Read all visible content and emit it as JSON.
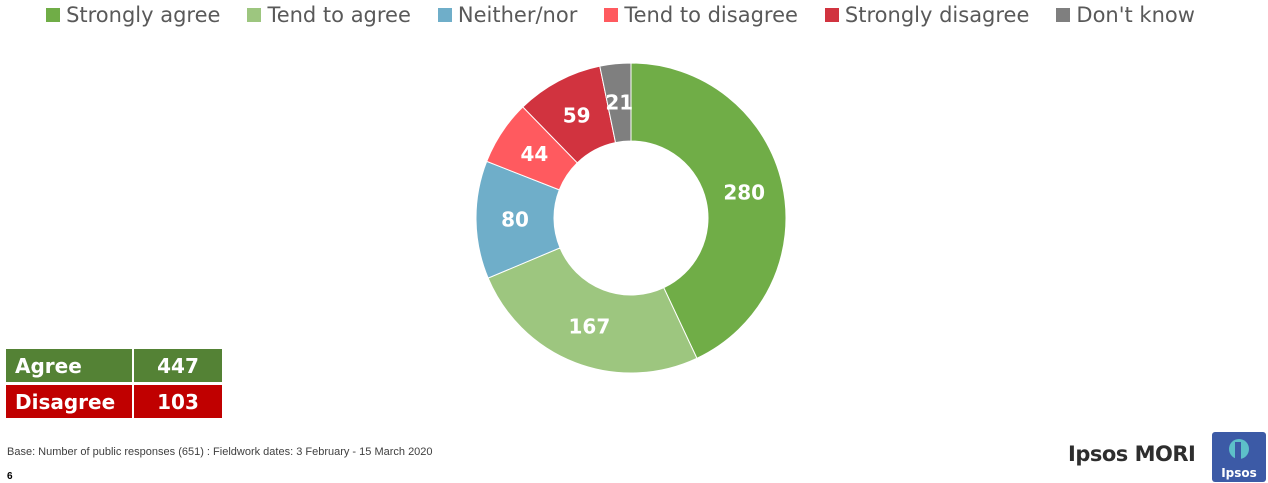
{
  "chart_data": {
    "type": "pie",
    "legend_position": "top",
    "series": [
      {
        "name": "Strongly agree",
        "value": 280,
        "color": "#70ad47"
      },
      {
        "name": "Tend to agree",
        "value": 167,
        "color": "#9dc67f"
      },
      {
        "name": "Neither/nor",
        "value": 80,
        "color": "#6faec9"
      },
      {
        "name": "Tend to disagree",
        "value": 44,
        "color": "#ff5a5f"
      },
      {
        "name": "Strongly disagree",
        "value": 59,
        "color": "#d1333f"
      },
      {
        "name": "Don't know",
        "value": 21,
        "color": "#7f7f7f"
      }
    ]
  },
  "summary": {
    "agree_label": "Agree",
    "agree_value": "447",
    "disagree_label": "Disagree",
    "disagree_value": "103"
  },
  "footer": {
    "base_text": "Base: Number of public responses (651) : Fieldwork dates: 3 February - 15 March 2020",
    "page_number": "6",
    "brand": "Ipsos MORI",
    "logo_text": "Ipsos"
  }
}
